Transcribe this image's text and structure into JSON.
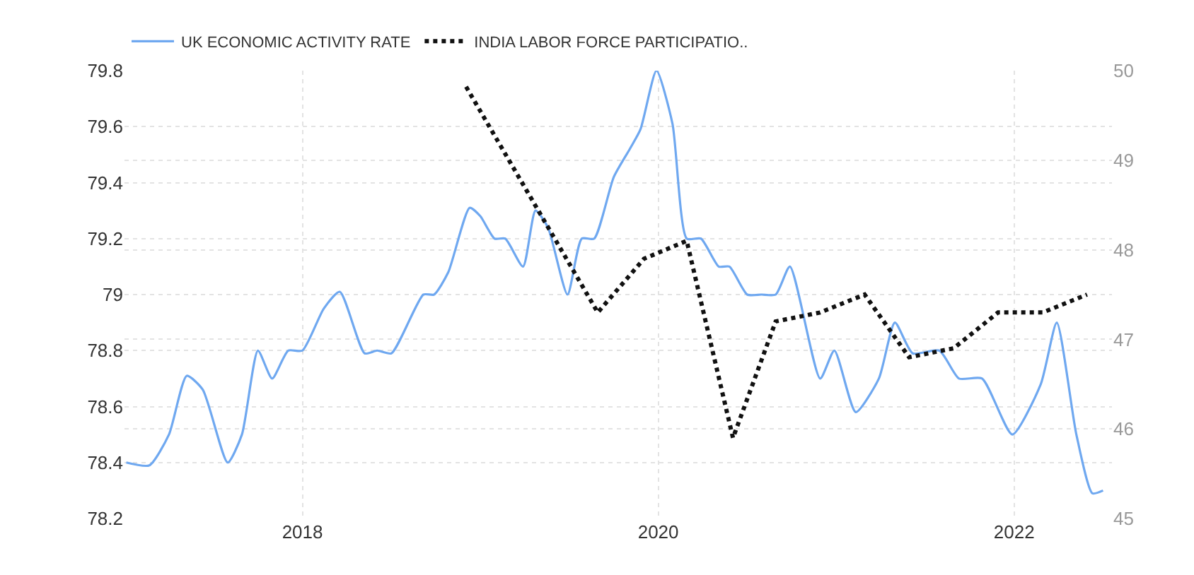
{
  "chart_data": {
    "type": "line",
    "legend": "top left",
    "grid": true,
    "marker": "none",
    "xlim": [
      2017,
      2022.55
    ],
    "xticks": [
      {
        "value": 2018,
        "label": "2018"
      },
      {
        "value": 2020,
        "label": "2020"
      },
      {
        "value": 2022,
        "label": "2022"
      }
    ],
    "ylim": [
      78.2,
      79.8
    ],
    "yticks": [
      78.2,
      78.4,
      78.6,
      78.8,
      79,
      79.2,
      79.4,
      79.6,
      79.8
    ],
    "y2lim": [
      45,
      50
    ],
    "y2ticks": [
      45,
      46,
      47,
      48,
      49,
      50
    ],
    "series": [
      {
        "name": "UK ECONOMIC ACTIVITY RATE",
        "color": "#6fa8f0",
        "line_style": "solid",
        "x": [
          2017.01,
          2017.14,
          2017.25,
          2017.35,
          2017.44,
          2017.58,
          2017.66,
          2017.75,
          2017.83,
          2017.92,
          2018.0,
          2018.12,
          2018.21,
          2018.35,
          2018.42,
          2018.5,
          2018.68,
          2018.74,
          2018.82,
          2018.94,
          2019.0,
          2019.08,
          2019.14,
          2019.24,
          2019.31,
          2019.38,
          2019.49,
          2019.57,
          2019.64,
          2019.75,
          2019.84,
          2019.9,
          2019.99,
          2020.08,
          2020.16,
          2020.24,
          2020.34,
          2020.4,
          2020.5,
          2020.58,
          2020.66,
          2020.74,
          2020.91,
          2020.99,
          2021.11,
          2021.24,
          2021.33,
          2021.43,
          2021.58,
          2021.69,
          2021.82,
          2021.99,
          2022.15,
          2022.24,
          2022.35,
          2022.44,
          2022.5
        ],
        "values": [
          78.4,
          78.39,
          78.5,
          78.71,
          78.66,
          78.4,
          78.5,
          78.8,
          78.7,
          78.8,
          78.8,
          78.95,
          79.01,
          78.79,
          78.8,
          78.79,
          79.0,
          79.0,
          79.08,
          79.31,
          79.28,
          79.2,
          79.2,
          79.1,
          79.3,
          79.24,
          79.0,
          79.2,
          79.2,
          79.42,
          79.52,
          79.59,
          79.8,
          79.61,
          79.2,
          79.2,
          79.1,
          79.1,
          79.0,
          79.0,
          79.0,
          79.1,
          78.7,
          78.8,
          78.58,
          78.7,
          78.9,
          78.79,
          78.8,
          78.7,
          78.7,
          78.5,
          78.68,
          78.9,
          78.5,
          78.29,
          78.3
        ]
      },
      {
        "name": "INDIA LABOR FORCE PARTICIPATIO..",
        "color": "#111111",
        "line_style": "dotted",
        "axis": "y2",
        "x": [
          2018.92,
          2019.66,
          2019.92,
          2020.16,
          2020.42,
          2020.66,
          2020.91,
          2021.16,
          2021.41,
          2021.66,
          2021.91,
          2022.16,
          2022.41
        ],
        "values": [
          49.82,
          47.3,
          47.9,
          48.1,
          45.9,
          47.2,
          47.3,
          47.5,
          46.8,
          46.9,
          47.3,
          47.3,
          47.5
        ]
      }
    ]
  }
}
